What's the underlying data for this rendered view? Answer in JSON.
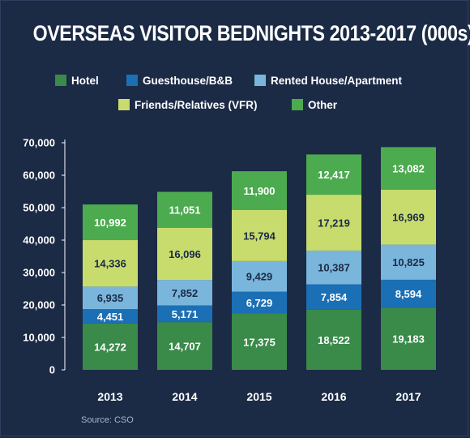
{
  "chart_data": {
    "type": "bar",
    "stacked": true,
    "title": "OVERSEAS VISITOR BEDNIGHTS 2013-2017 (000s)",
    "categories": [
      "2013",
      "2014",
      "2015",
      "2016",
      "2017"
    ],
    "ylim": [
      0,
      70000
    ],
    "yticks": [
      0,
      10000,
      20000,
      30000,
      40000,
      50000,
      60000,
      70000
    ],
    "ytick_labels": [
      "0",
      "10,000",
      "20,000",
      "30,000",
      "40,000",
      "50,000",
      "60,000",
      "70,000"
    ],
    "legend_position": "top",
    "grid": false,
    "series": [
      {
        "name": "Hotel",
        "color": "#3a8a4a",
        "values": [
          14272,
          14707,
          17375,
          18522,
          19183
        ],
        "labels": [
          "14,272",
          "14,707",
          "17,375",
          "18,522",
          "19,183"
        ]
      },
      {
        "name": "Guesthouse/B&B",
        "color": "#1b6fb5",
        "values": [
          4451,
          5171,
          6729,
          7854,
          8594
        ],
        "labels": [
          "4,451",
          "5,171",
          "6,729",
          "7,854",
          "8,594"
        ]
      },
      {
        "name": "Rented House/Apartment",
        "color": "#7ab6dc",
        "values": [
          6935,
          7852,
          9429,
          10387,
          10825
        ],
        "labels": [
          "6,935",
          "7,852",
          "9,429",
          "10,387",
          "10,825"
        ]
      },
      {
        "name": "Friends/Relatives (VFR)",
        "color": "#c8dc6e",
        "values": [
          14336,
          16096,
          15794,
          17219,
          16969
        ],
        "labels": [
          "14,336",
          "16,096",
          "15,794",
          "17,219",
          "16,969"
        ]
      },
      {
        "name": "Other",
        "color": "#4caa4f",
        "values": [
          10992,
          11051,
          11900,
          12417,
          13082
        ],
        "labels": [
          "10,992",
          "11,051",
          "11,900",
          "12,417",
          "13,082"
        ]
      }
    ]
  },
  "source": "Source: CSO"
}
